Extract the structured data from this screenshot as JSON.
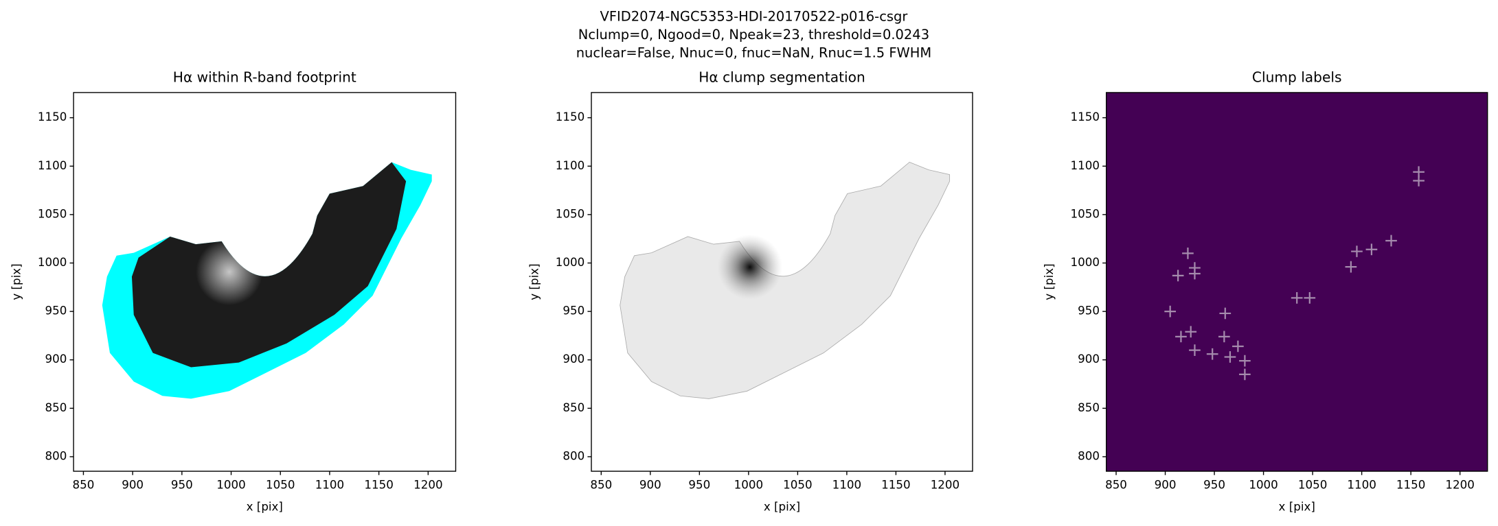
{
  "figure": {
    "title_lines": [
      "VFID2074-NGC5353-HDI-20170522-p016-csgr",
      "Nclump=0, Ngood=0, Npeak=23, threshold=0.0243",
      "nuclear=False, Nnuc=0, fnuc=NaN, Rnuc=1.5 FWHM"
    ]
  },
  "chart_data": [
    {
      "type": "image",
      "title": "Hα within R-band footprint",
      "xlabel": "x [pix]",
      "ylabel": "y [pix]",
      "xlim": [
        840,
        1228
      ],
      "ylim": [
        785,
        1176
      ],
      "xticks": [
        850,
        900,
        950,
        1000,
        1050,
        1100,
        1150,
        1200
      ],
      "yticks": [
        800,
        850,
        900,
        950,
        1000,
        1050,
        1100,
        1150
      ]
    },
    {
      "type": "image",
      "title": "Hα clump segmentation",
      "xlabel": "x [pix]",
      "ylabel": "y [pix]",
      "xlim": [
        840,
        1228
      ],
      "ylim": [
        785,
        1176
      ],
      "xticks": [
        850,
        900,
        950,
        1000,
        1050,
        1100,
        1150,
        1200
      ],
      "yticks": [
        800,
        850,
        900,
        950,
        1000,
        1050,
        1100,
        1150
      ]
    },
    {
      "type": "scatter",
      "title": "Clump labels",
      "xlabel": "x [pix]",
      "ylabel": "y [pix]",
      "xlim": [
        840,
        1228
      ],
      "ylim": [
        785,
        1176
      ],
      "xticks": [
        850,
        900,
        950,
        1000,
        1050,
        1100,
        1150,
        1200
      ],
      "yticks": [
        800,
        850,
        900,
        950,
        1000,
        1050,
        1100,
        1150
      ],
      "marker": "+",
      "color": "#a58bad",
      "x": [
        1158,
        1158,
        1130,
        1110,
        1095,
        1089,
        1047,
        1034,
        923,
        930,
        930,
        913,
        905,
        961,
        916,
        926,
        960,
        930,
        948,
        966,
        974,
        981,
        981
      ],
      "y": [
        1094,
        1085,
        1023,
        1014,
        1012,
        996,
        964,
        964,
        1010,
        995,
        989,
        987,
        950,
        948,
        924,
        929,
        924,
        910,
        906,
        903,
        914,
        899,
        885
      ]
    }
  ]
}
